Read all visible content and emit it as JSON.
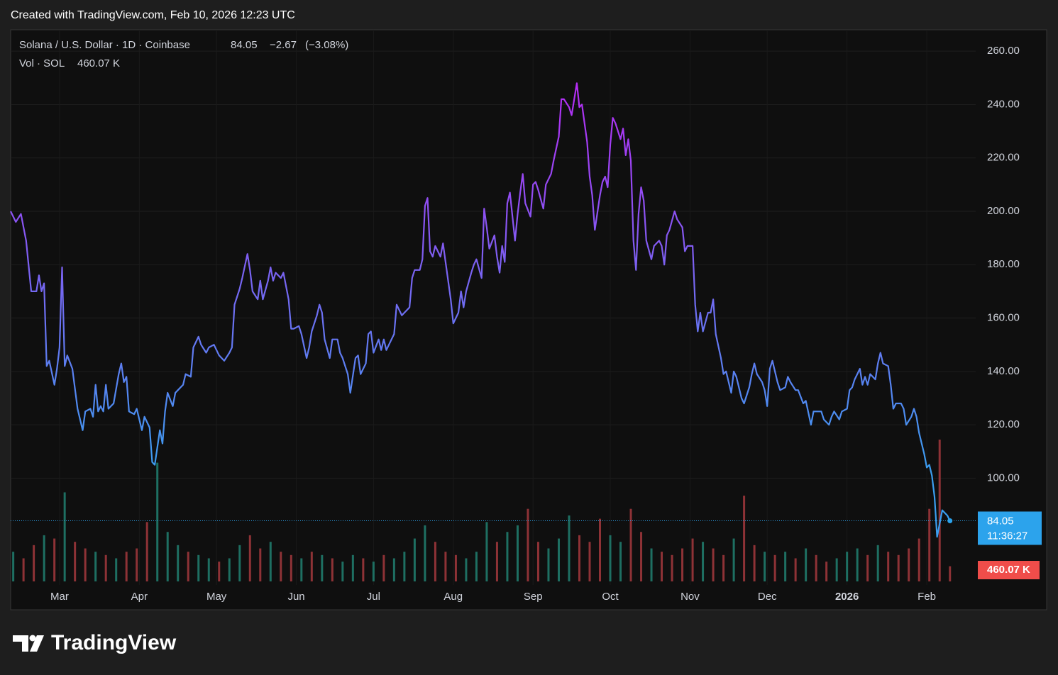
{
  "chart_data": {
    "type": "line",
    "created": "Created with TradingView.com, Feb 10, 2026 12:23 UTC",
    "title": "Solana / U.S. Dollar · 1D · Coinbase",
    "last_price": 84.05,
    "change": {
      "value": -2.67,
      "label": "−2.67"
    },
    "change_pct": {
      "value": -3.08,
      "label": "(−3.08%)"
    },
    "countdown": "11:36:27",
    "brand": "TradingView",
    "line_colors": [
      "#3a9ef0",
      "#b52cf4"
    ],
    "price_color": "#2ca3ec",
    "grid": true,
    "xlim": [
      0,
      375
    ],
    "xticks": [
      {
        "value": 19,
        "label": "Mar"
      },
      {
        "value": 50,
        "label": "Apr"
      },
      {
        "value": 80,
        "label": "May"
      },
      {
        "value": 111,
        "label": "Jun"
      },
      {
        "value": 141,
        "label": "Jul"
      },
      {
        "value": 172,
        "label": "Aug"
      },
      {
        "value": 203,
        "label": "Sep"
      },
      {
        "value": 233,
        "label": "Oct"
      },
      {
        "value": 264,
        "label": "Nov"
      },
      {
        "value": 294,
        "label": "Dec"
      },
      {
        "value": 325,
        "label": "2026"
      },
      {
        "value": 356,
        "label": "Feb"
      }
    ],
    "ylim": [
      60,
      268
    ],
    "yticks": [
      {
        "value": 100,
        "label": "100.00"
      },
      {
        "value": 120,
        "label": "120.00"
      },
      {
        "value": 140,
        "label": "140.00"
      },
      {
        "value": 160,
        "label": "160.00"
      },
      {
        "value": 180,
        "label": "180.00"
      },
      {
        "value": 200,
        "label": "200.00"
      },
      {
        "value": 220,
        "label": "220.00"
      },
      {
        "value": 240,
        "label": "240.00"
      },
      {
        "value": 260,
        "label": "260.00"
      }
    ],
    "x": [
      0,
      2,
      4,
      6,
      8,
      10,
      11,
      12,
      13,
      14,
      15,
      17,
      18,
      19,
      20,
      21,
      22,
      24,
      26,
      28,
      29,
      31,
      32,
      33,
      34,
      35,
      36,
      37,
      38,
      40,
      42,
      43,
      44,
      45,
      46,
      48,
      49,
      51,
      52,
      54,
      55,
      56,
      58,
      59,
      60,
      61,
      63,
      64,
      66,
      67,
      68,
      70,
      71,
      73,
      74,
      76,
      77,
      79,
      80,
      81,
      83,
      85,
      86,
      87,
      89,
      90,
      92,
      93,
      94,
      96,
      97,
      98,
      100,
      101,
      102,
      103,
      105,
      106,
      108,
      109,
      110,
      112,
      113,
      115,
      116,
      117,
      119,
      120,
      121,
      122,
      124,
      125,
      127,
      128,
      129,
      131,
      132,
      134,
      135,
      136,
      138,
      139,
      140,
      141,
      143,
      144,
      145,
      146,
      148,
      149,
      150,
      152,
      153,
      155,
      156,
      157,
      159,
      160,
      161,
      162,
      163,
      164,
      165,
      167,
      168,
      169,
      171,
      172,
      174,
      175,
      176,
      177,
      179,
      180,
      181,
      183,
      184,
      185,
      186,
      188,
      189,
      190,
      191,
      192,
      193,
      194,
      196,
      197,
      198,
      199,
      200,
      202,
      203,
      204,
      205,
      207,
      208,
      210,
      211,
      213,
      214,
      215,
      217,
      218,
      220,
      221,
      222,
      224,
      225,
      226,
      227,
      229,
      230,
      231,
      232,
      233,
      234,
      235,
      237,
      238,
      239,
      240,
      241,
      242,
      243,
      244,
      245,
      246,
      247,
      249,
      250,
      252,
      253,
      254,
      255,
      256,
      258,
      259,
      261,
      262,
      263,
      265,
      266,
      267,
      268,
      269,
      271,
      272,
      273,
      274,
      276,
      277,
      278,
      280,
      281,
      282,
      284,
      285,
      287,
      288,
      289,
      290,
      292,
      293,
      294,
      295,
      296,
      298,
      299,
      301,
      302,
      303,
      305,
      306,
      308,
      309,
      311,
      312,
      314,
      315,
      316,
      318,
      319,
      320,
      322,
      323,
      325,
      326,
      327,
      328,
      330,
      331,
      332,
      333,
      334,
      336,
      337,
      338,
      339,
      341,
      342,
      343,
      344,
      346,
      347,
      348,
      350,
      351,
      352,
      353,
      355,
      356,
      357,
      358,
      359,
      360,
      362,
      363,
      364,
      365
    ],
    "values": [
      200,
      196,
      199,
      189,
      170,
      170,
      176,
      170,
      173,
      142,
      144,
      135,
      141,
      149,
      179,
      142,
      146,
      141,
      126,
      118,
      125,
      126,
      123,
      135,
      125,
      127,
      125,
      135,
      126,
      128,
      139,
      143,
      136,
      138,
      125,
      124,
      126,
      118,
      123,
      119,
      106,
      105,
      118,
      113,
      125,
      132,
      127,
      132,
      134,
      135,
      139,
      138,
      149,
      153,
      150,
      147,
      149,
      150,
      148,
      146,
      144,
      147,
      149,
      165,
      171,
      175,
      184,
      178,
      170,
      167,
      174,
      167,
      174,
      179,
      174,
      177,
      175,
      177,
      167,
      156,
      156,
      157,
      154,
      145,
      149,
      155,
      161,
      165,
      162,
      152,
      145,
      152,
      152,
      147,
      145,
      139,
      132,
      145,
      146,
      139,
      143,
      154,
      155,
      147,
      152,
      148,
      152,
      148,
      152,
      154,
      165,
      161,
      162,
      164,
      175,
      178,
      178,
      182,
      202,
      205,
      185,
      183,
      187,
      183,
      188,
      181,
      167,
      158,
      162,
      170,
      164,
      170,
      177,
      180,
      182,
      175,
      201,
      194,
      186,
      191,
      183,
      177,
      187,
      181,
      203,
      207,
      189,
      199,
      207,
      214,
      203,
      198,
      210,
      211,
      208,
      201,
      210,
      214,
      219,
      228,
      242,
      242,
      239,
      236,
      248,
      239,
      240,
      226,
      213,
      206,
      193,
      206,
      211,
      213,
      209,
      225,
      235,
      233,
      227,
      231,
      221,
      227,
      219,
      189,
      178,
      199,
      209,
      204,
      189,
      182,
      187,
      189,
      187,
      180,
      191,
      193,
      200,
      197,
      194,
      185,
      187,
      187,
      165,
      155,
      162,
      155,
      162,
      162,
      167,
      154,
      145,
      139,
      140,
      132,
      140,
      138,
      130,
      128,
      134,
      139,
      143,
      139,
      136,
      133,
      127,
      141,
      144,
      136,
      133,
      134,
      138,
      136,
      133,
      133,
      128,
      129,
      120,
      125,
      125,
      125,
      122,
      120,
      123,
      125,
      122,
      125,
      126,
      133,
      134,
      137,
      141,
      135,
      138,
      135,
      139,
      137,
      143,
      147,
      143,
      142,
      135,
      126,
      128,
      128,
      126,
      120,
      123,
      126,
      123,
      117,
      109,
      104,
      105,
      101,
      93,
      78,
      88,
      87,
      86,
      84.05
    ],
    "volume": {
      "title": "Vol · SOL",
      "last_label": "460.07 K",
      "label_color": "#f04d4a",
      "x": [
        1,
        5,
        9,
        13,
        17,
        21,
        25,
        29,
        33,
        37,
        41,
        45,
        49,
        53,
        57,
        61,
        65,
        69,
        73,
        77,
        81,
        85,
        89,
        93,
        97,
        101,
        105,
        109,
        113,
        117,
        121,
        125,
        129,
        133,
        137,
        141,
        145,
        149,
        153,
        157,
        161,
        165,
        169,
        173,
        177,
        181,
        185,
        189,
        193,
        197,
        201,
        205,
        209,
        213,
        217,
        221,
        225,
        229,
        233,
        237,
        241,
        245,
        249,
        253,
        257,
        261,
        265,
        269,
        273,
        277,
        281,
        285,
        289,
        293,
        297,
        301,
        305,
        309,
        313,
        317,
        321,
        325,
        329,
        333,
        337,
        341,
        345,
        349,
        353,
        357,
        361,
        365
      ],
      "values": [
        900,
        700,
        1100,
        1400,
        1300,
        2700,
        1200,
        1000,
        900,
        800,
        700,
        900,
        1000,
        1800,
        3600,
        1500,
        1100,
        900,
        800,
        700,
        600,
        700,
        1100,
        1400,
        1000,
        1200,
        900,
        800,
        700,
        900,
        800,
        700,
        600,
        800,
        700,
        600,
        800,
        700,
        900,
        1300,
        1700,
        1200,
        900,
        800,
        700,
        900,
        1800,
        1200,
        1500,
        1700,
        2200,
        1200,
        1000,
        1300,
        2000,
        1400,
        1200,
        1900,
        1400,
        1200,
        2200,
        1500,
        1000,
        900,
        800,
        1000,
        1300,
        1200,
        1000,
        800,
        1300,
        2600,
        1100,
        900,
        800,
        900,
        700,
        1000,
        800,
        600,
        700,
        900,
        1000,
        800,
        1100,
        900,
        800,
        1000,
        1300,
        2200,
        4300,
        460.07
      ],
      "colors": [
        "#1e6f62",
        "#8e3236",
        "#8e3236",
        "#1e6f62",
        "#8e3236",
        "#1e6f62",
        "#8e3236",
        "#8e3236",
        "#1e6f62",
        "#8e3236",
        "#1e6f62",
        "#8e3236",
        "#8e3236",
        "#8e3236",
        "#1e6f62",
        "#1e6f62",
        "#1e6f62",
        "#8e3236",
        "#1e6f62",
        "#1e6f62",
        "#8e3236",
        "#1e6f62",
        "#1e6f62",
        "#8e3236",
        "#8e3236",
        "#1e6f62",
        "#8e3236",
        "#8e3236",
        "#1e6f62",
        "#8e3236",
        "#1e6f62",
        "#8e3236",
        "#1e6f62",
        "#1e6f62",
        "#8e3236",
        "#1e6f62",
        "#8e3236",
        "#1e6f62",
        "#1e6f62",
        "#1e6f62",
        "#1e6f62",
        "#8e3236",
        "#8e3236",
        "#8e3236",
        "#1e6f62",
        "#1e6f62",
        "#1e6f62",
        "#8e3236",
        "#1e6f62",
        "#1e6f62",
        "#8e3236",
        "#8e3236",
        "#1e6f62",
        "#1e6f62",
        "#1e6f62",
        "#8e3236",
        "#8e3236",
        "#8e3236",
        "#1e6f62",
        "#1e6f62",
        "#8e3236",
        "#8e3236",
        "#1e6f62",
        "#8e3236",
        "#8e3236",
        "#8e3236",
        "#8e3236",
        "#1e6f62",
        "#8e3236",
        "#8e3236",
        "#1e6f62",
        "#8e3236",
        "#8e3236",
        "#1e6f62",
        "#8e3236",
        "#1e6f62",
        "#8e3236",
        "#1e6f62",
        "#8e3236",
        "#8e3236",
        "#1e6f62",
        "#1e6f62",
        "#1e6f62",
        "#8e3236",
        "#1e6f62",
        "#8e3236",
        "#8e3236",
        "#8e3236",
        "#8e3236",
        "#8e3236",
        "#8e3236",
        "#8e3236"
      ]
    }
  }
}
